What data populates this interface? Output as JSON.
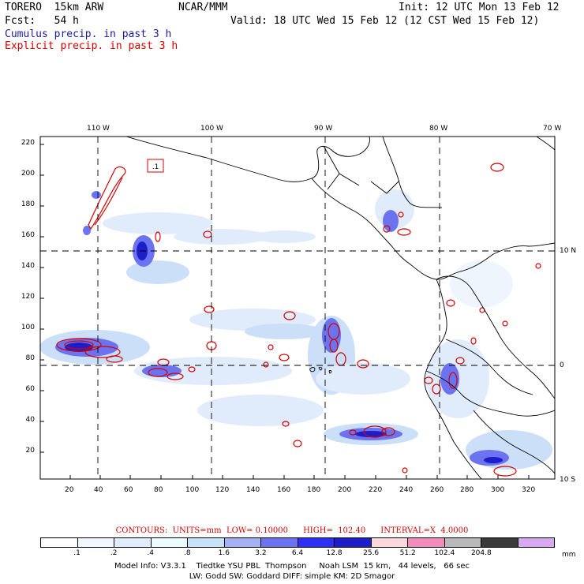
{
  "header": {
    "model": "TORERO  15km ARW",
    "org": "NCAR/MMM",
    "init": "Init: 12 UTC Mon 13 Feb 12",
    "fcst": "Fcst:   54 h",
    "valid": "Valid: 18 UTC Wed 15 Feb 12 (12 CST Wed 15 Feb 12)",
    "legend_cumulus": "Cumulus precip. in past 3 h",
    "legend_explicit": "Explicit precip. in past 3 h"
  },
  "axes": {
    "top_lon_labels": [
      "110 W",
      "100 W",
      "90 W",
      "80 W",
      "70 W"
    ],
    "right_lat_labels": [
      "10 N",
      "0",
      "10 S"
    ],
    "x_ticks": [
      "20",
      "40",
      "60",
      "80",
      "100",
      "120",
      "140",
      "160",
      "180",
      "200",
      "220",
      "240",
      "260",
      "280",
      "300",
      "320"
    ],
    "y_ticks": [
      "220",
      "200",
      "180",
      "160",
      "140",
      "120",
      "100",
      "80",
      "60",
      "40",
      "20"
    ]
  },
  "contours": {
    "text": "CONTOURS:  UNITS=mm  LOW= 0.10000      HIGH=  102.40      INTERVAL=X  4.0000"
  },
  "colorbar": {
    "unit": "mm",
    "labels": [
      ".1",
      ".2",
      ".4",
      ".8",
      "1.6",
      "3.2",
      "6.4",
      "12.8",
      "25.6",
      "51.2",
      "102.4",
      "204.8"
    ],
    "colors": [
      "#ffffff",
      "#f2f7ff",
      "#e0ecff",
      "#eafcff",
      "#c6e2f8",
      "#a2b2f5",
      "#6b73f0",
      "#2d30f5",
      "#1e1ec8",
      "#fcd8dc",
      "#f28cbc",
      "#b9b9b9",
      "#3a3a3a",
      "#d8a8f0"
    ]
  },
  "footer": {
    "line1": "Model Info: V3.3.1    Tiedtke YSU PBL  Thompson     Noah LSM  15 km,   44 levels,   66 sec",
    "line2": "LW: Godd SW: Goddard DIFF: simple KM: 2D Smagor"
  },
  "map_annotation": {
    "high_label": ".1"
  }
}
